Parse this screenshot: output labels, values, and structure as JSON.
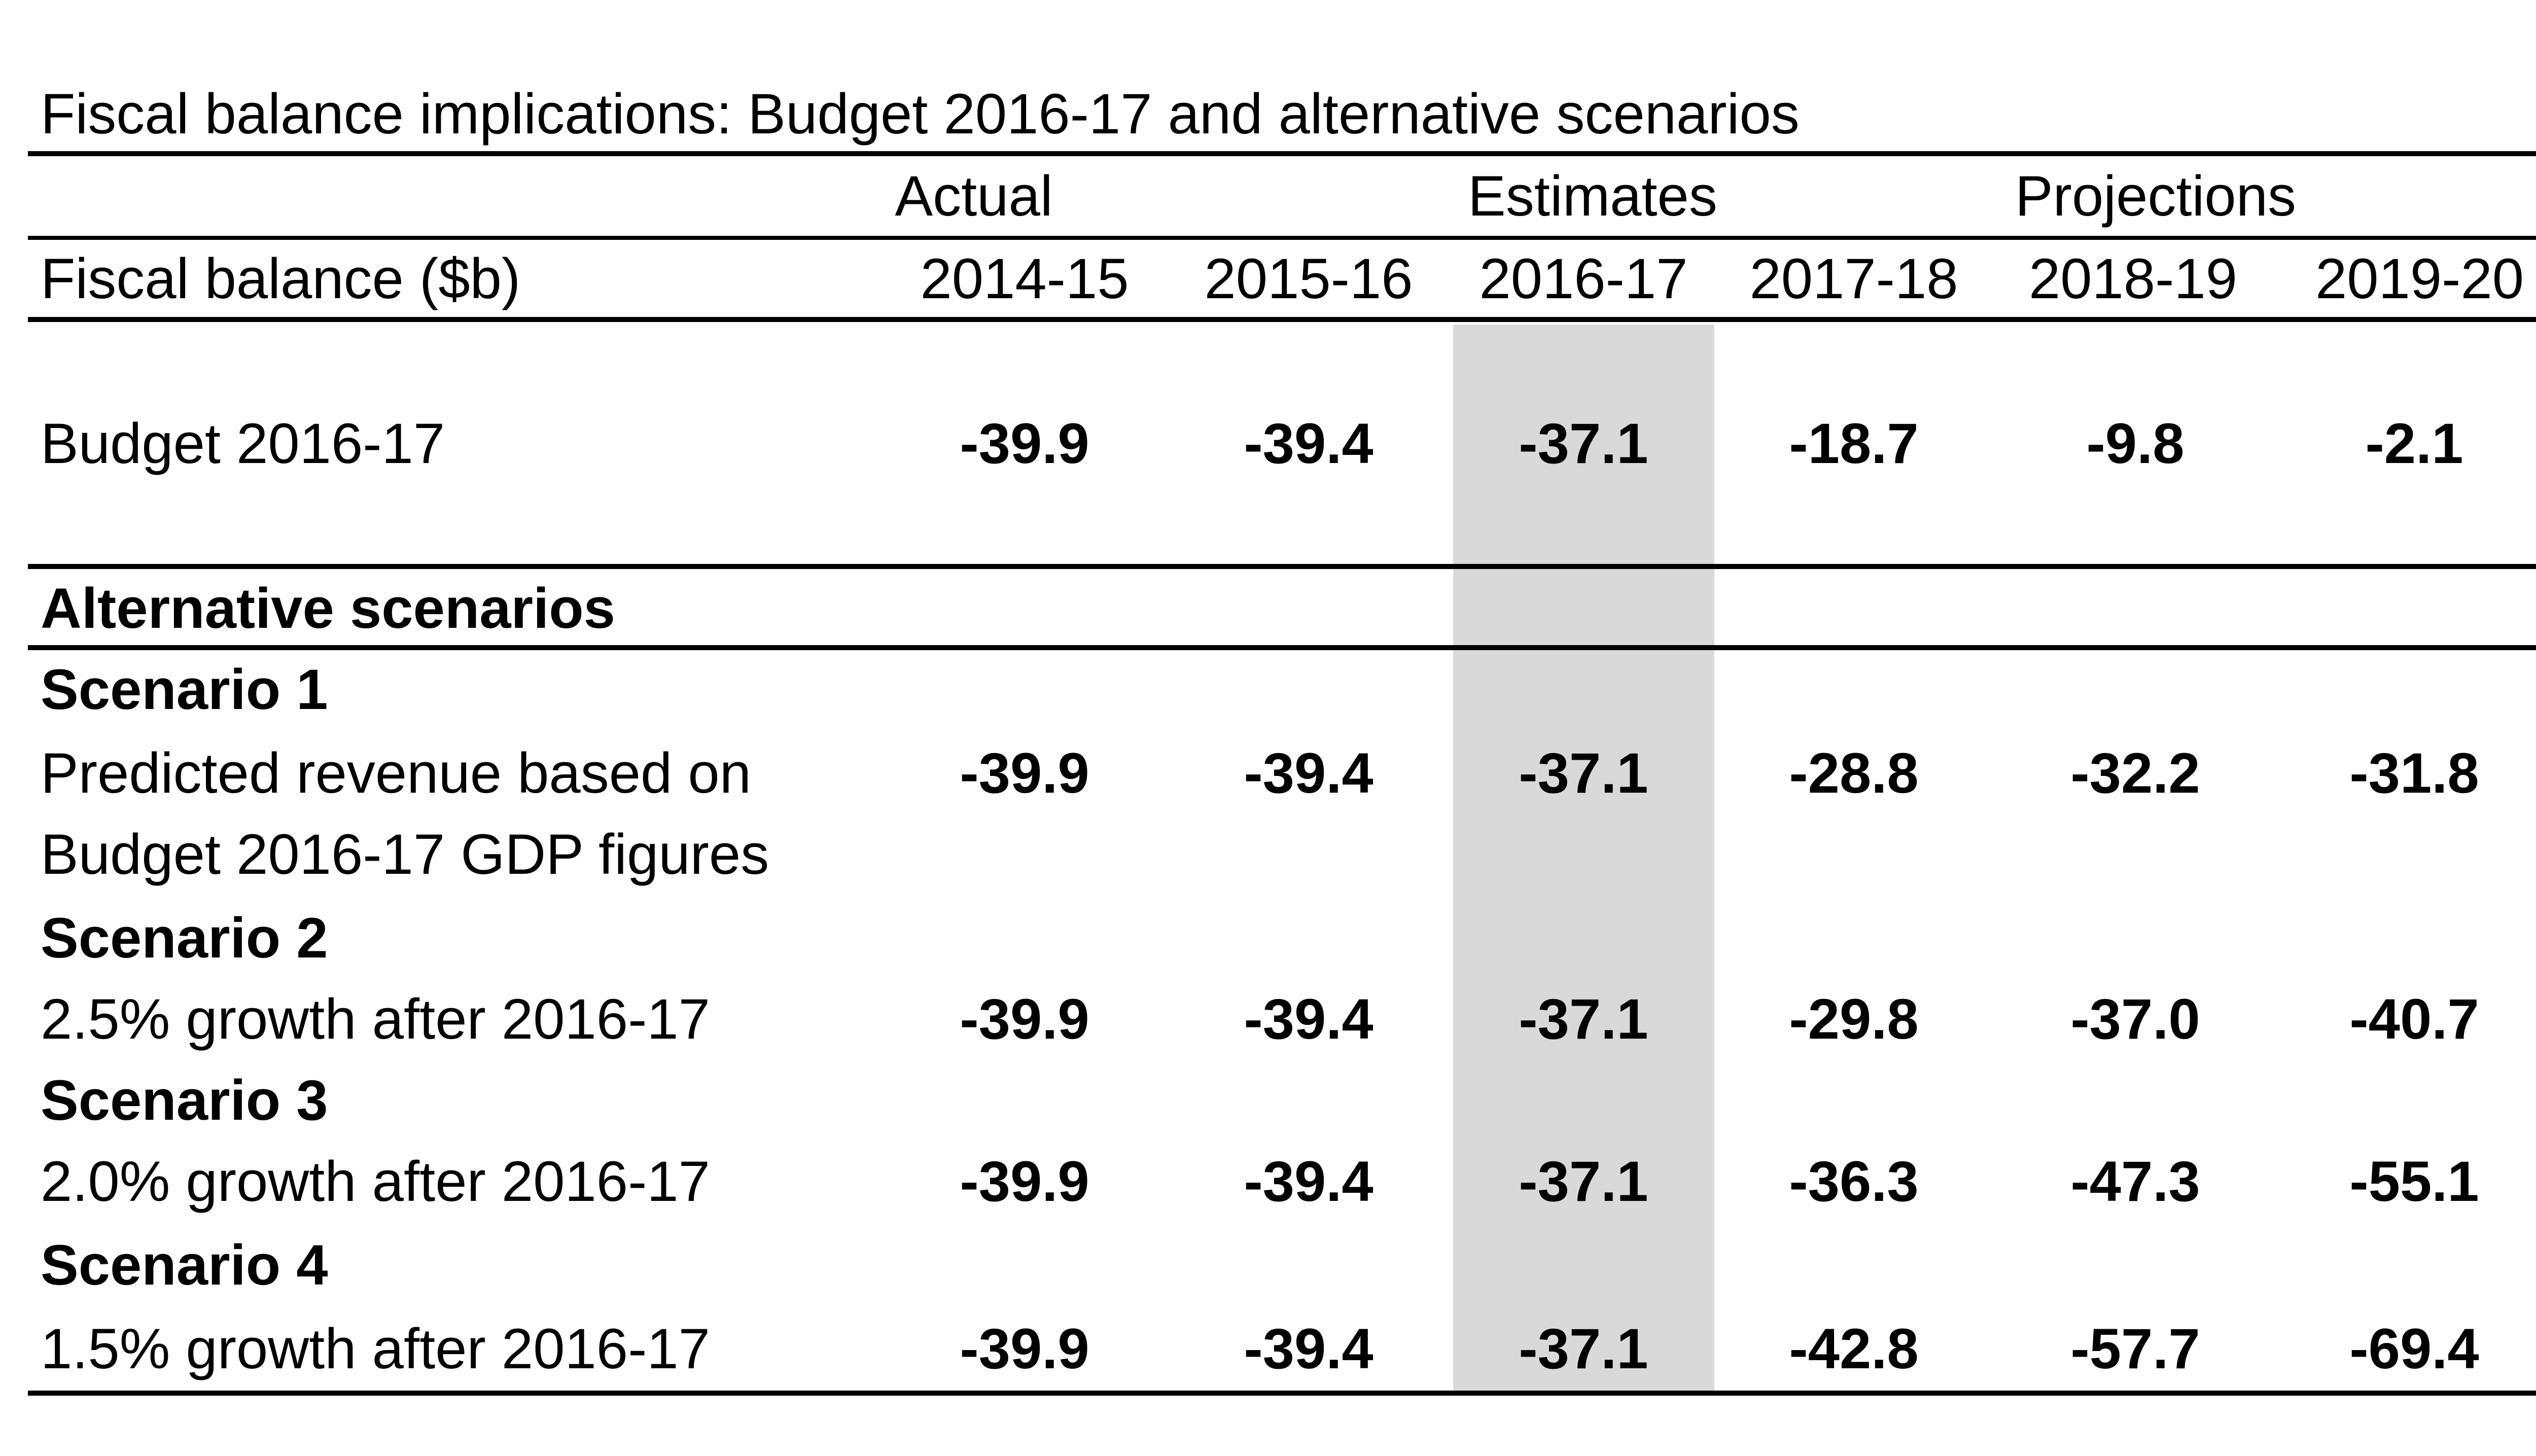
{
  "title": "Fiscal balance implications: Budget 2016-17 and alternative scenarios",
  "group_headers": {
    "actual": "Actual",
    "estimates": "Estimates",
    "projections": "Projections"
  },
  "row_header": "Fiscal balance ($b)",
  "years": [
    "2014-15",
    "2015-16",
    "2016-17",
    "2017-18",
    "2018-19",
    "2019-20"
  ],
  "budget": {
    "label": "Budget 2016-17",
    "values": [
      "-39.9",
      "-39.4",
      "-37.1",
      "-18.7",
      "-9.8",
      "-2.1"
    ]
  },
  "alt_header": "Alternative scenarios",
  "scenarios": [
    {
      "name": "Scenario 1",
      "desc_line1": "Predicted revenue based on",
      "desc_line2": "Budget 2016-17 GDP figures",
      "values": [
        "-39.9",
        "-39.4",
        "-37.1",
        "-28.8",
        "-32.2",
        "-31.8"
      ]
    },
    {
      "name": "Scenario 2",
      "desc": "2.5% growth after 2016-17",
      "values": [
        "-39.9",
        "-39.4",
        "-37.1",
        "-29.8",
        "-37.0",
        "-40.7"
      ]
    },
    {
      "name": "Scenario 3",
      "desc": "2.0% growth after 2016-17",
      "values": [
        "-39.9",
        "-39.4",
        "-37.1",
        "-36.3",
        "-47.3",
        "-55.1"
      ]
    },
    {
      "name": "Scenario 4",
      "desc": "1.5% growth after 2016-17",
      "values": [
        "-39.9",
        "-39.4",
        "-37.1",
        "-42.8",
        "-57.7",
        "-69.4"
      ]
    }
  ],
  "colors": {
    "highlight_column": "#d9d9d9",
    "rule": "#000000"
  }
}
